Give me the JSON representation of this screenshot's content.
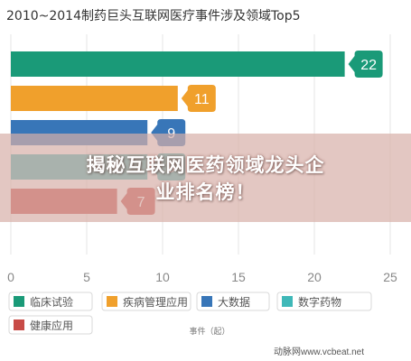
{
  "chart_data": {
    "type": "bar",
    "orientation": "horizontal",
    "title": "2010~2014制药巨头互联网医疗事件涉及领域Top5",
    "categories": [
      "临床试验",
      "疾病管理应用",
      "大数据",
      "数字药物",
      "健康应用"
    ],
    "values": [
      22,
      11,
      9,
      9,
      7
    ],
    "colors": [
      "#1a9a78",
      "#f0a02c",
      "#3876b8",
      "#3fb8b8",
      "#c84b47"
    ],
    "xlabel": "事件（起）",
    "xlim": [
      0,
      25
    ],
    "xticks": [
      0,
      5,
      10,
      15,
      20,
      25
    ],
    "grid": "vertical",
    "legend": "bottom"
  },
  "overlay": {
    "line1": "揭秘互联网医药领域龙头企",
    "line2": "业排名榜！"
  },
  "source": "动脉网www.vcbeat.net"
}
